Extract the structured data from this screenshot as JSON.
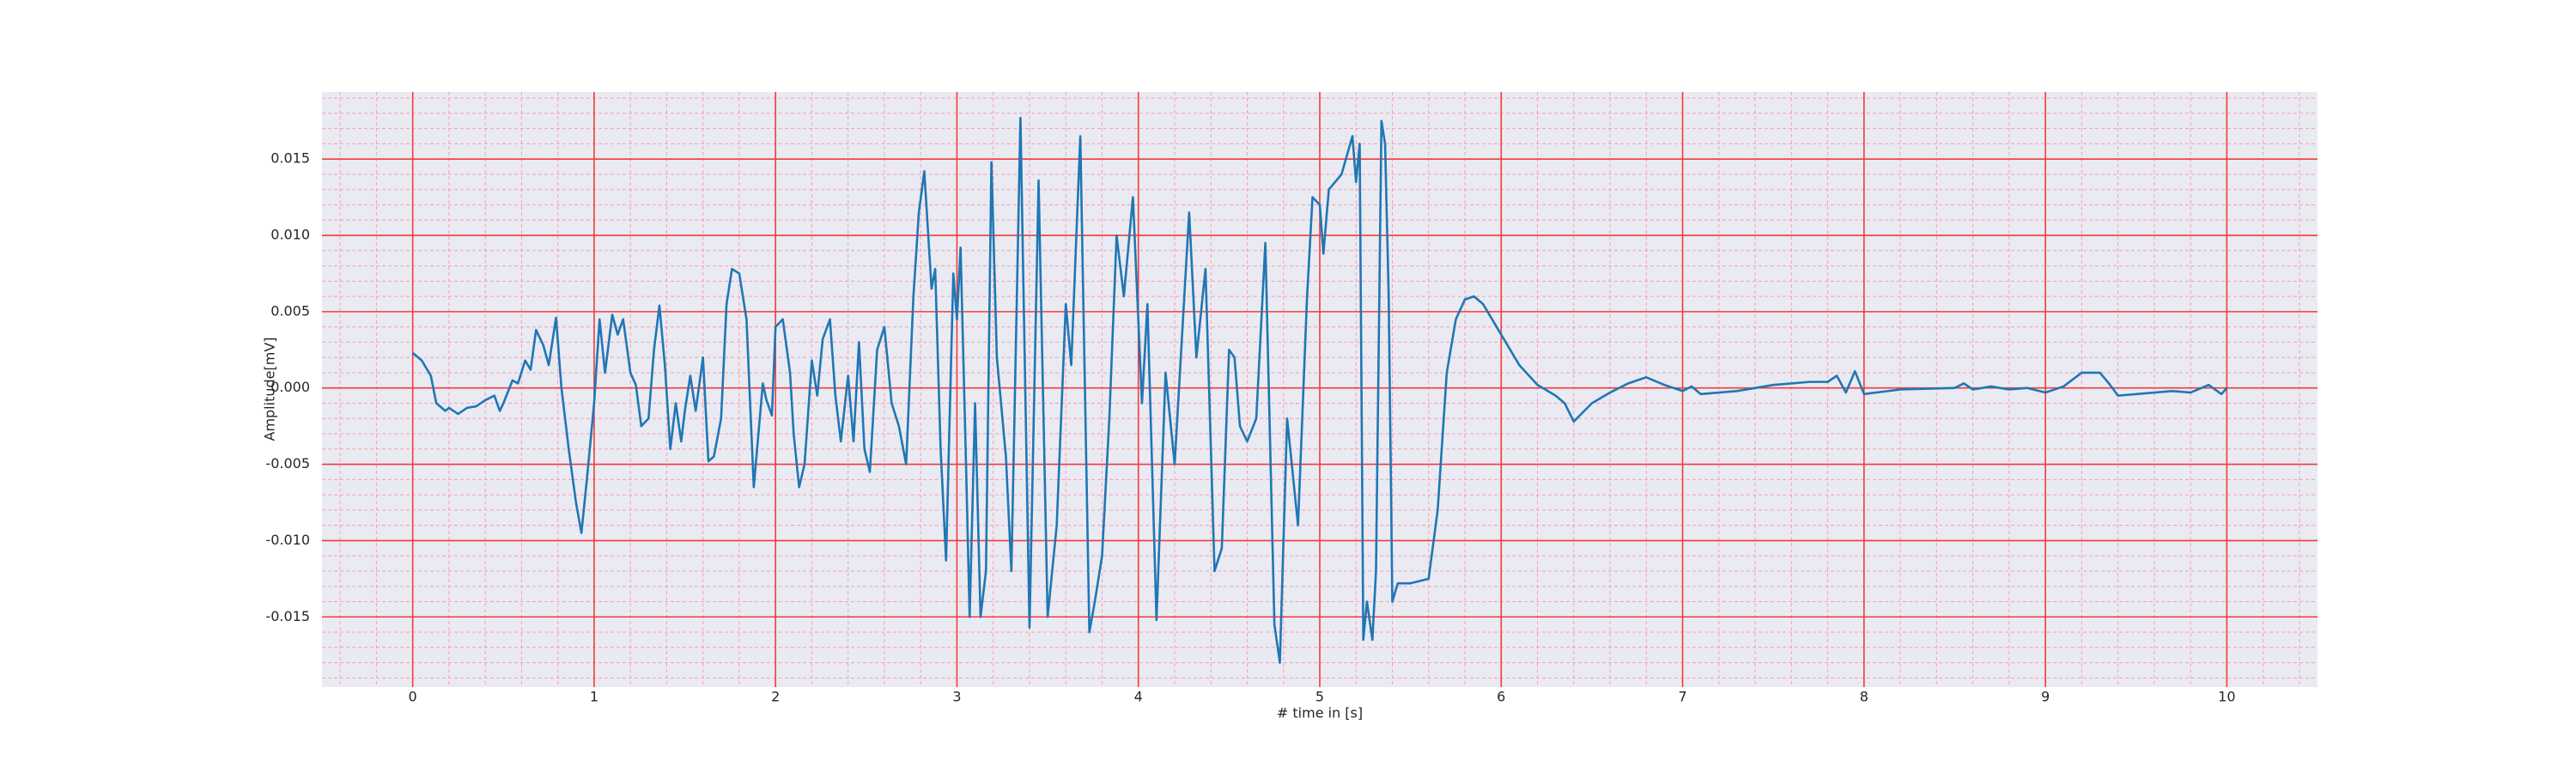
{
  "chart_data": {
    "type": "line",
    "xlabel": "# time in [s]",
    "ylabel": "Amplitude[mV]",
    "color": "#1f77b4",
    "grid": true,
    "grid_color": "#f03c3c",
    "minor_grid": true,
    "minor_grid_color": "#f4a0b4",
    "background": "#eaeaf2",
    "xlim": [
      -0.5,
      10.5
    ],
    "ylim": [
      -0.0196,
      0.0194
    ],
    "xticks": [
      0,
      1,
      2,
      3,
      4,
      5,
      6,
      7,
      8,
      9,
      10
    ],
    "yticks": [
      -0.015,
      {
        "value": -0.01,
        "label": "-0.010"
      },
      -0.005,
      {
        "value": 0,
        "label": "0.000"
      },
      0.005,
      {
        "value": 0.01,
        "label": "0.010"
      },
      0.015
    ],
    "xminorticks": [
      -0.4,
      -0.2,
      0.2,
      0.4,
      0.6,
      0.8,
      1.2,
      1.4,
      1.6,
      1.8,
      2.2,
      2.4,
      2.6,
      2.8,
      3.2,
      3.4,
      3.6,
      3.8,
      4.2,
      4.4,
      4.6,
      4.8,
      5.2,
      5.4,
      5.6,
      5.8,
      6.2,
      6.4,
      6.6,
      6.8,
      7.2,
      7.4,
      7.6,
      7.8,
      8.2,
      8.4,
      8.6,
      8.8,
      9.2,
      9.4,
      9.6,
      9.8,
      10.2,
      10.4
    ],
    "yminorticks": [
      -0.019,
      -0.018,
      -0.017,
      -0.016,
      -0.014,
      -0.013,
      -0.012,
      -0.011,
      -0.009,
      -0.008,
      -0.007,
      -0.006,
      -0.004,
      -0.003,
      -0.002,
      -0.001,
      0.001,
      0.002,
      0.003,
      0.004,
      0.006,
      0.007,
      0.008,
      0.009,
      0.011,
      0.012,
      0.013,
      0.014,
      0.016,
      0.017,
      0.018,
      0.019
    ],
    "x": [
      0,
      0.05,
      0.1,
      0.13,
      0.18,
      0.2,
      0.25,
      0.3,
      0.35,
      0.4,
      0.45,
      0.48,
      0.5,
      0.55,
      0.58,
      0.62,
      0.65,
      0.68,
      0.72,
      0.75,
      0.79,
      0.82,
      0.86,
      0.9,
      0.93,
      0.96,
      1.0,
      1.03,
      1.06,
      1.1,
      1.13,
      1.16,
      1.2,
      1.23,
      1.26,
      1.3,
      1.33,
      1.36,
      1.39,
      1.42,
      1.45,
      1.48,
      1.5,
      1.53,
      1.56,
      1.6,
      1.63,
      1.66,
      1.7,
      1.73,
      1.76,
      1.8,
      1.84,
      1.88,
      1.93,
      1.95,
      1.98,
      2.0,
      2.04,
      2.08,
      2.1,
      2.13,
      2.16,
      2.2,
      2.23,
      2.26,
      2.3,
      2.33,
      2.36,
      2.4,
      2.43,
      2.46,
      2.49,
      2.52,
      2.56,
      2.6,
      2.64,
      2.68,
      2.72,
      2.76,
      2.79,
      2.82,
      2.86,
      2.88,
      2.91,
      2.94,
      2.98,
      3.0,
      3.02,
      3.05,
      3.07,
      3.1,
      3.13,
      3.16,
      3.19,
      3.22,
      3.27,
      3.3,
      3.35,
      3.4,
      3.45,
      3.5,
      3.55,
      3.6,
      3.63,
      3.68,
      3.73,
      3.76,
      3.8,
      3.84,
      3.88,
      3.92,
      3.97,
      4.02,
      4.05,
      4.1,
      4.15,
      4.2,
      4.28,
      4.32,
      4.37,
      4.42,
      4.46,
      4.5,
      4.53,
      4.56,
      4.6,
      4.65,
      4.7,
      4.75,
      4.78,
      4.82,
      4.88,
      4.93,
      4.96,
      5.0,
      5.02,
      5.05,
      5.12,
      5.18,
      5.2,
      5.22,
      5.24,
      5.26,
      5.29,
      5.31,
      5.34,
      5.36,
      5.38,
      5.4,
      5.43,
      5.5,
      5.6,
      5.65,
      5.7,
      5.75,
      5.8,
      5.85,
      5.9,
      6.0,
      6.1,
      6.2,
      6.3,
      6.35,
      6.4,
      6.5,
      6.6,
      6.7,
      6.8,
      6.9,
      7.0,
      7.05,
      7.1,
      7.3,
      7.5,
      7.7,
      7.8,
      7.85,
      7.9,
      7.95,
      8.0,
      8.2,
      8.5,
      8.55,
      8.6,
      8.7,
      8.8,
      8.9,
      9.0,
      9.1,
      9.2,
      9.3,
      9.35,
      9.4,
      9.6,
      9.7,
      9.8,
      9.9,
      9.97,
      10.0
    ],
    "values": [
      0.0023,
      0.0018,
      0.0008,
      -0.001,
      -0.0015,
      -0.0013,
      -0.0017,
      -0.0013,
      -0.0012,
      -0.0008,
      -0.0005,
      -0.0015,
      -0.001,
      0.0005,
      0.0003,
      0.0018,
      0.0012,
      0.0038,
      0.0028,
      0.0015,
      0.0046,
      0.0,
      -0.004,
      -0.0075,
      -0.0095,
      -0.006,
      -0.001,
      0.0045,
      0.001,
      0.0048,
      0.0035,
      0.0045,
      0.001,
      0.0002,
      -0.0025,
      -0.002,
      0.0025,
      0.0054,
      0.0015,
      -0.004,
      -0.001,
      -0.0035,
      -0.0015,
      0.0008,
      -0.0015,
      0.002,
      -0.0048,
      -0.0045,
      -0.002,
      0.0055,
      0.0078,
      0.0075,
      0.0045,
      -0.0065,
      0.0003,
      -0.0008,
      -0.0018,
      0.004,
      0.0045,
      0.001,
      -0.003,
      -0.0065,
      -0.005,
      0.0018,
      -0.0005,
      0.0032,
      0.0045,
      -0.0005,
      -0.0035,
      0.0008,
      -0.0035,
      0.003,
      -0.004,
      -0.0055,
      0.0025,
      0.004,
      -0.001,
      -0.0025,
      -0.005,
      0.006,
      0.0115,
      0.0142,
      0.0065,
      0.0078,
      -0.004,
      -0.0113,
      0.0075,
      0.0045,
      0.0092,
      -0.005,
      -0.015,
      -0.001,
      -0.015,
      -0.012,
      0.0148,
      0.002,
      -0.0045,
      -0.012,
      0.0177,
      -0.0157,
      0.0136,
      -0.015,
      -0.009,
      0.0055,
      0.0015,
      0.0165,
      -0.016,
      -0.014,
      -0.011,
      -0.002,
      0.01,
      0.006,
      0.0125,
      -0.001,
      0.0055,
      -0.0152,
      0.001,
      -0.005,
      0.0115,
      0.002,
      0.0078,
      -0.012,
      -0.0105,
      0.0025,
      0.002,
      -0.0025,
      -0.0035,
      -0.002,
      0.0095,
      -0.0155,
      -0.018,
      -0.002,
      -0.009,
      0.006,
      0.0125,
      0.012,
      0.0088,
      0.013,
      0.014,
      0.0165,
      0.0135,
      0.016,
      -0.0165,
      -0.014,
      -0.0165,
      -0.012,
      0.0175,
      0.016,
      0.006,
      -0.014,
      -0.0128,
      -0.0128,
      -0.0125,
      -0.008,
      0.001,
      0.0045,
      0.0058,
      0.006,
      0.0055,
      0.0035,
      0.0015,
      0.0002,
      -0.0005,
      -0.001,
      -0.0022,
      -0.001,
      -0.0003,
      0.0003,
      0.0007,
      0.0002,
      -0.0002,
      0.0001,
      -0.0004,
      -0.0002,
      0.0002,
      0.0004,
      0.0004,
      0.0008,
      -0.0003,
      0.0011,
      -0.0004,
      -0.0001,
      0.0,
      0.0003,
      -0.0001,
      0.0001,
      -0.0001,
      0.0,
      -0.0003,
      0.0001,
      0.001,
      0.001,
      0.0003,
      -0.0005,
      -0.0003,
      -0.0002,
      -0.0003,
      0.0002,
      -0.0004,
      0.0
    ]
  }
}
